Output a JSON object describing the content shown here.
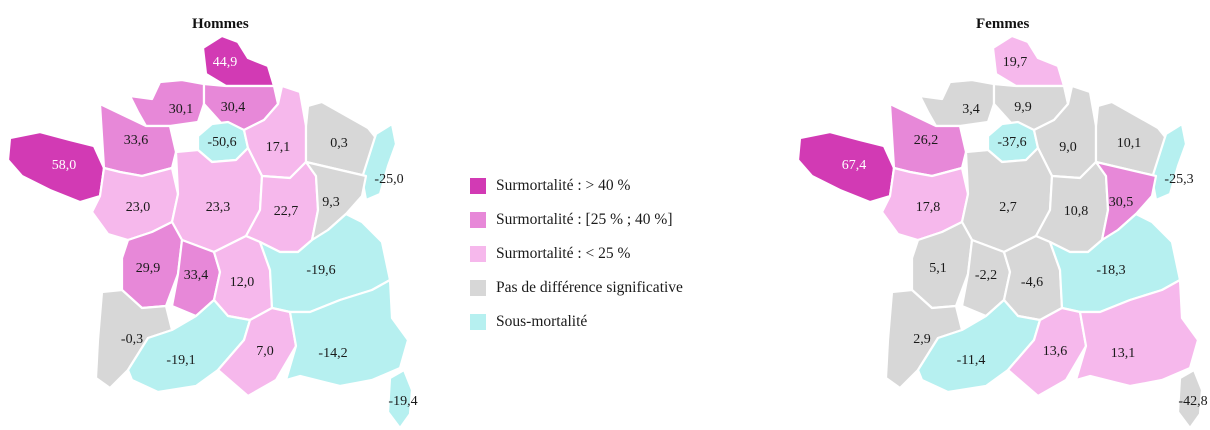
{
  "colors": {
    "gt40": "#d23ab4",
    "b25_40": "#e788d8",
    "lt25": "#f6b8ec",
    "nsd": "#d7d7d7",
    "under": "#b6f0f0"
  },
  "legend": [
    {
      "key": "gt40",
      "label": "Surmortalité : > 40 %"
    },
    {
      "key": "b25_40",
      "label": "Surmortalité : [25 % ; 40 %]"
    },
    {
      "key": "lt25",
      "label": "Surmortalité : < 25 %"
    },
    {
      "key": "nsd",
      "label": "Pas de différence significative"
    },
    {
      "key": "under",
      "label": "Sous-mortalité"
    }
  ],
  "maps": {
    "hommes": {
      "title": "Hommes",
      "regions": [
        {
          "id": "nord",
          "value": "44,9",
          "cat": "gt40"
        },
        {
          "id": "normandie",
          "value": "30,1",
          "cat": "b25_40"
        },
        {
          "id": "picardie",
          "value": "30,4",
          "cat": "b25_40"
        },
        {
          "id": "idf",
          "value": "-50,6",
          "cat": "under"
        },
        {
          "id": "champagne",
          "value": "17,1",
          "cat": "lt25"
        },
        {
          "id": "lorraine",
          "value": "0,3",
          "cat": "nsd"
        },
        {
          "id": "alsace",
          "value": "-25,0",
          "cat": "under"
        },
        {
          "id": "bretagne",
          "value": "58,0",
          "cat": "gt40"
        },
        {
          "id": "bnormandie",
          "value": "33,6",
          "cat": "b25_40"
        },
        {
          "id": "pdl",
          "value": "23,0",
          "cat": "lt25"
        },
        {
          "id": "centre",
          "value": "23,3",
          "cat": "lt25"
        },
        {
          "id": "bourgogne",
          "value": "22,7",
          "cat": "lt25"
        },
        {
          "id": "franche",
          "value": "9,3",
          "cat": "nsd"
        },
        {
          "id": "poitou",
          "value": "29,9",
          "cat": "b25_40"
        },
        {
          "id": "limousin",
          "value": "33,4",
          "cat": "b25_40"
        },
        {
          "id": "auvergne",
          "value": "12,0",
          "cat": "lt25"
        },
        {
          "id": "rhone",
          "value": "-19,6",
          "cat": "under"
        },
        {
          "id": "aquitaine",
          "value": "-0,3",
          "cat": "nsd"
        },
        {
          "id": "midi",
          "value": "-19,1",
          "cat": "under"
        },
        {
          "id": "languedoc",
          "value": "7,0",
          "cat": "lt25"
        },
        {
          "id": "paca",
          "value": "-14,2",
          "cat": "under"
        },
        {
          "id": "corse",
          "value": "-19,4",
          "cat": "under"
        }
      ]
    },
    "femmes": {
      "title": "Femmes",
      "regions": [
        {
          "id": "nord",
          "value": "19,7",
          "cat": "lt25"
        },
        {
          "id": "normandie",
          "value": "3,4",
          "cat": "nsd"
        },
        {
          "id": "picardie",
          "value": "9,9",
          "cat": "nsd"
        },
        {
          "id": "idf",
          "value": "-37,6",
          "cat": "under"
        },
        {
          "id": "champagne",
          "value": "9,0",
          "cat": "nsd"
        },
        {
          "id": "lorraine",
          "value": "10,1",
          "cat": "nsd"
        },
        {
          "id": "alsace",
          "value": "-25,3",
          "cat": "under"
        },
        {
          "id": "bretagne",
          "value": "67,4",
          "cat": "gt40"
        },
        {
          "id": "bnormandie",
          "value": "26,2",
          "cat": "b25_40"
        },
        {
          "id": "pdl",
          "value": "17,8",
          "cat": "lt25"
        },
        {
          "id": "centre",
          "value": "2,7",
          "cat": "nsd"
        },
        {
          "id": "bourgogne",
          "value": "10,8",
          "cat": "nsd"
        },
        {
          "id": "franche",
          "value": "30,5",
          "cat": "b25_40"
        },
        {
          "id": "poitou",
          "value": "5,1",
          "cat": "nsd"
        },
        {
          "id": "limousin",
          "value": "-2,2",
          "cat": "nsd"
        },
        {
          "id": "auvergne",
          "value": "-4,6",
          "cat": "nsd"
        },
        {
          "id": "rhone",
          "value": "-18,3",
          "cat": "under"
        },
        {
          "id": "aquitaine",
          "value": "2,9",
          "cat": "nsd"
        },
        {
          "id": "midi",
          "value": "-11,4",
          "cat": "under"
        },
        {
          "id": "languedoc",
          "value": "13,6",
          "cat": "lt25"
        },
        {
          "id": "paca",
          "value": "13,1",
          "cat": "lt25"
        },
        {
          "id": "corse",
          "value": "-42,8",
          "cat": "nsd"
        }
      ]
    }
  }
}
